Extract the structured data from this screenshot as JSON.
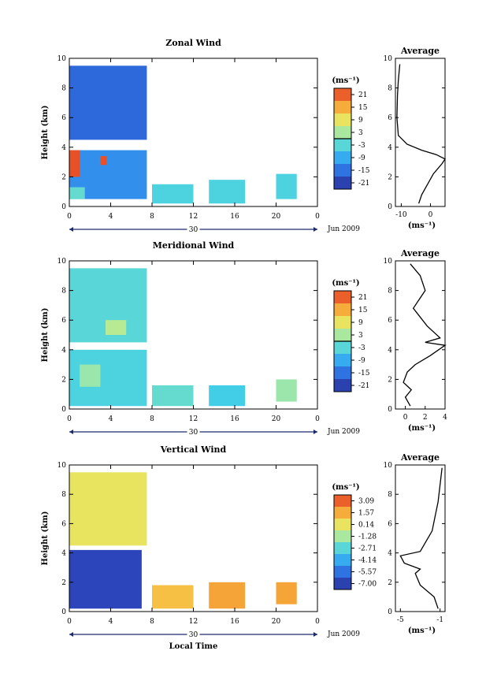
{
  "figure": {
    "xlabel": "Local Time",
    "date_label": "Jun 2009",
    "day_label": "30",
    "unit_label": "(ms⁻¹)",
    "avg_title": "Average"
  },
  "chart_data": [
    {
      "type": "heatmap",
      "title": "Zonal Wind",
      "ylabel": "Height (km)",
      "xlabel": "",
      "x_ticks": [
        "0",
        "4",
        "8",
        "12",
        "16",
        "20",
        "0"
      ],
      "xlim": [
        0,
        24
      ],
      "ylim": [
        0,
        10
      ],
      "y_ticks": [
        "0",
        "2",
        "4",
        "6",
        "8",
        "10"
      ],
      "colorbar": {
        "unit": "(ms⁻¹)",
        "tick_labels": [
          "21",
          "15",
          "9",
          "3",
          "-3",
          "-9",
          "-15",
          "-21"
        ],
        "range": [
          -24,
          24
        ],
        "zero_line": true
      },
      "regions": [
        {
          "x": [
            0.0,
            7.5
          ],
          "y": [
            4.5,
            9.5
          ],
          "value": -16
        },
        {
          "x": [
            0.0,
            7.5
          ],
          "y": [
            0.5,
            3.8
          ],
          "value": -12
        },
        {
          "x": [
            0.0,
            1.0
          ],
          "y": [
            2.0,
            3.8
          ],
          "value": 22
        },
        {
          "x": [
            3.0,
            3.6
          ],
          "y": [
            2.8,
            3.4
          ],
          "value": 22
        },
        {
          "x": [
            0.0,
            1.5
          ],
          "y": [
            0.5,
            1.3
          ],
          "value": -2
        },
        {
          "x": [
            8.0,
            12.0
          ],
          "y": [
            0.2,
            1.5
          ],
          "value": -4
        },
        {
          "x": [
            13.5,
            17.0
          ],
          "y": [
            0.2,
            1.8
          ],
          "value": -4
        },
        {
          "x": [
            20.0,
            22.0
          ],
          "y": [
            0.5,
            2.2
          ],
          "value": -4
        }
      ],
      "average": {
        "xlim": [
          -12,
          5
        ],
        "x_ticks": [
          "-10",
          "0"
        ],
        "x_tick_values": [
          -10,
          0
        ],
        "ylim": [
          0,
          10
        ],
        "y_ticks": [
          "0",
          "2",
          "4",
          "6",
          "8",
          "10"
        ],
        "xlabel": "(ms⁻¹)",
        "profile": [
          {
            "x": -4,
            "y": 0.2
          },
          {
            "x": -3,
            "y": 0.8
          },
          {
            "x": -1,
            "y": 1.5
          },
          {
            "x": 1,
            "y": 2.2
          },
          {
            "x": 4,
            "y": 2.9
          },
          {
            "x": 5,
            "y": 3.2
          },
          {
            "x": 2,
            "y": 3.5
          },
          {
            "x": -3,
            "y": 3.8
          },
          {
            "x": -8,
            "y": 4.2
          },
          {
            "x": -11,
            "y": 4.8
          },
          {
            "x": -11.5,
            "y": 6.0
          },
          {
            "x": -11.3,
            "y": 7.5
          },
          {
            "x": -11,
            "y": 8.5
          },
          {
            "x": -10.5,
            "y": 9.6
          }
        ]
      }
    },
    {
      "type": "heatmap",
      "title": "Meridional Wind",
      "ylabel": "Height (km)",
      "xlabel": "",
      "x_ticks": [
        "0",
        "4",
        "8",
        "12",
        "16",
        "20",
        "0"
      ],
      "xlim": [
        0,
        24
      ],
      "ylim": [
        0,
        10
      ],
      "y_ticks": [
        "0",
        "2",
        "4",
        "6",
        "8",
        "10"
      ],
      "colorbar": {
        "unit": "(ms⁻¹)",
        "tick_labels": [
          "21",
          "15",
          "9",
          "3",
          "-3",
          "-9",
          "-15",
          "-21"
        ],
        "range": [
          -24,
          24
        ],
        "zero_line": true
      },
      "regions": [
        {
          "x": [
            0.0,
            7.5
          ],
          "y": [
            4.5,
            9.5
          ],
          "value": -3
        },
        {
          "x": [
            3.5,
            5.5
          ],
          "y": [
            5.0,
            6.0
          ],
          "value": 4
        },
        {
          "x": [
            0.0,
            7.5
          ],
          "y": [
            0.2,
            4.0
          ],
          "value": -4
        },
        {
          "x": [
            1.0,
            3.0
          ],
          "y": [
            1.5,
            3.0
          ],
          "value": 2
        },
        {
          "x": [
            8.0,
            12.0
          ],
          "y": [
            0.2,
            1.6
          ],
          "value": -2
        },
        {
          "x": [
            13.5,
            17.0
          ],
          "y": [
            0.2,
            1.6
          ],
          "value": -5
        },
        {
          "x": [
            20.0,
            22.0
          ],
          "y": [
            0.5,
            2.0
          ],
          "value": 2
        }
      ],
      "average": {
        "xlim": [
          -1,
          4
        ],
        "x_ticks": [
          "0",
          "2",
          "4"
        ],
        "x_tick_values": [
          0,
          2,
          4
        ],
        "ylim": [
          0,
          10
        ],
        "y_ticks": [
          "0",
          "2",
          "4",
          "6",
          "8",
          "10"
        ],
        "xlabel": "(ms⁻¹)",
        "profile": [
          {
            "x": 0.5,
            "y": 0.2
          },
          {
            "x": 0.0,
            "y": 0.8
          },
          {
            "x": 0.6,
            "y": 1.3
          },
          {
            "x": -0.2,
            "y": 1.8
          },
          {
            "x": 0.2,
            "y": 2.5
          },
          {
            "x": 1.0,
            "y": 3.0
          },
          {
            "x": 2.5,
            "y": 3.6
          },
          {
            "x": 4.0,
            "y": 4.3
          },
          {
            "x": 2.0,
            "y": 4.5
          },
          {
            "x": 3.5,
            "y": 4.8
          },
          {
            "x": 2.2,
            "y": 5.6
          },
          {
            "x": 0.8,
            "y": 6.8
          },
          {
            "x": 2.0,
            "y": 8.0
          },
          {
            "x": 1.5,
            "y": 9.0
          },
          {
            "x": 0.5,
            "y": 9.8
          }
        ]
      }
    },
    {
      "type": "heatmap",
      "title": "Vertical Wind",
      "ylabel": "Height (km)",
      "xlabel": "Local Time",
      "x_ticks": [
        "0",
        "4",
        "8",
        "12",
        "16",
        "20",
        "0"
      ],
      "xlim": [
        0,
        24
      ],
      "ylim": [
        0,
        10
      ],
      "y_ticks": [
        "0",
        "2",
        "4",
        "6",
        "8",
        "10"
      ],
      "colorbar": {
        "unit": "(ms⁻¹)",
        "tick_labels": [
          "3.09",
          "1.57",
          "0.14",
          "-1.28",
          "-2.71",
          "-4.14",
          "-5.57",
          "-7.00"
        ],
        "range": [
          -7.7,
          3.8
        ],
        "zero_line": false
      },
      "regions": [
        {
          "x": [
            0.0,
            7.5
          ],
          "y": [
            4.5,
            9.5
          ],
          "value": 0.2
        },
        {
          "x": [
            0.0,
            7.0
          ],
          "y": [
            0.2,
            4.2
          ],
          "value": -6.8
        },
        {
          "x": [
            8.0,
            12.0
          ],
          "y": [
            0.2,
            1.8
          ],
          "value": 1.2
        },
        {
          "x": [
            13.5,
            17.0
          ],
          "y": [
            0.2,
            2.0
          ],
          "value": 1.8
        },
        {
          "x": [
            20.0,
            22.0
          ],
          "y": [
            0.5,
            2.0
          ],
          "value": 1.8
        }
      ],
      "average": {
        "xlim": [
          -5.5,
          -0.5
        ],
        "x_ticks": [
          "-5",
          "-1"
        ],
        "x_tick_values": [
          -5,
          -1
        ],
        "ylim": [
          0,
          10
        ],
        "y_ticks": [
          "0",
          "2",
          "4",
          "6",
          "8",
          "10"
        ],
        "xlabel": "(ms⁻¹)",
        "profile": [
          {
            "x": -1.2,
            "y": 0.2
          },
          {
            "x": -1.6,
            "y": 1.0
          },
          {
            "x": -3.0,
            "y": 1.8
          },
          {
            "x": -3.5,
            "y": 2.6
          },
          {
            "x": -3.0,
            "y": 2.9
          },
          {
            "x": -4.6,
            "y": 3.3
          },
          {
            "x": -5.0,
            "y": 3.8
          },
          {
            "x": -3.0,
            "y": 4.1
          },
          {
            "x": -1.8,
            "y": 5.5
          },
          {
            "x": -1.2,
            "y": 7.5
          },
          {
            "x": -0.8,
            "y": 9.8
          }
        ]
      }
    }
  ]
}
